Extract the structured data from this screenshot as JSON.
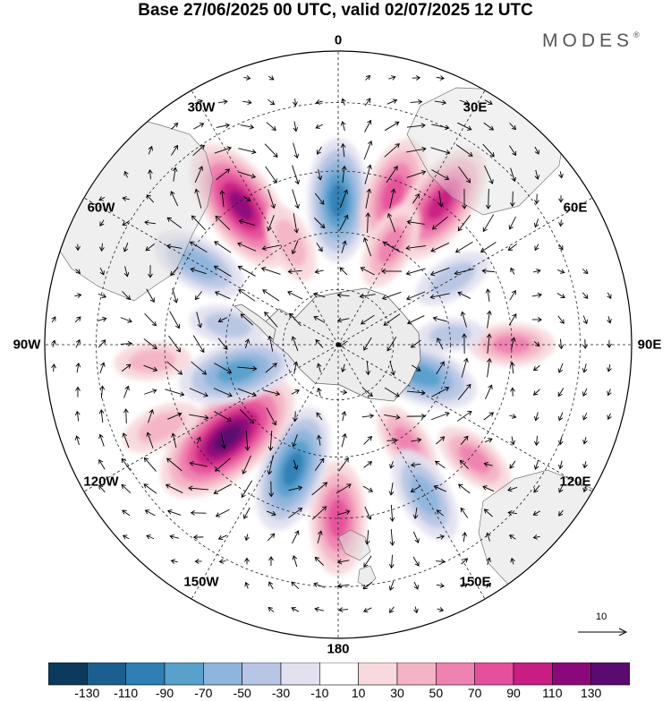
{
  "title": "Base 27/06/2025 00 UTC, valid 02/07/2025 12 UTC",
  "brand": "MODES",
  "brand_mark": "®",
  "longitude_labels": [
    "0",
    "30E",
    "60E",
    "90E",
    "120E",
    "150E",
    "180",
    "150W",
    "120W",
    "90W",
    "60W",
    "30W"
  ],
  "reference_vector": {
    "value": 10,
    "label": "10"
  },
  "colorbar": {
    "colors": [
      "#0c3a5c",
      "#1c5f8f",
      "#2f7fb5",
      "#5aa0cc",
      "#8eb5dc",
      "#b7c6e4",
      "#e3e1f0",
      "#ffffff",
      "#f8d9dd",
      "#f4b4c5",
      "#ee82b0",
      "#e5509a",
      "#c81d83",
      "#8b087a",
      "#5b0a70"
    ],
    "tick_labels": [
      "-130",
      "-110",
      "-90",
      "-70",
      "-50",
      "-30",
      "-10",
      "10",
      "30",
      "50",
      "70",
      "90",
      "110",
      "130"
    ]
  },
  "map_data": {
    "projection": "south-polar-stereographic",
    "pole": "South Pole",
    "anomalies": [
      {
        "lon": 0,
        "lat": -52,
        "value": -80
      },
      {
        "lon": 20,
        "lat": -48,
        "value": 70
      },
      {
        "lon": 36,
        "lat": -45,
        "value": 85
      },
      {
        "lon": 28,
        "lat": -60,
        "value": 45
      },
      {
        "lon": -35,
        "lat": -46,
        "value": 100
      },
      {
        "lon": -25,
        "lat": -60,
        "value": 35
      },
      {
        "lon": -60,
        "lat": -48,
        "value": -55
      },
      {
        "lon": 60,
        "lat": -55,
        "value": -35
      },
      {
        "lon": 90,
        "lat": -45,
        "value": 40
      },
      {
        "lon": 85,
        "lat": -60,
        "value": -20
      },
      {
        "lon": 110,
        "lat": -66,
        "value": -70
      },
      {
        "lon": 130,
        "lat": -44,
        "value": 40
      },
      {
        "lon": 145,
        "lat": -58,
        "value": 40
      },
      {
        "lon": 150,
        "lat": -45,
        "value": -55
      },
      {
        "lon": 180,
        "lat": -45,
        "value": 70
      },
      {
        "lon": -160,
        "lat": -55,
        "value": -85
      },
      {
        "lon": -130,
        "lat": -52,
        "value": 120
      },
      {
        "lon": -105,
        "lat": -62,
        "value": -75
      },
      {
        "lon": -80,
        "lat": -60,
        "value": -30
      },
      {
        "lon": -95,
        "lat": -42,
        "value": 30
      },
      {
        "lon": -115,
        "lat": -40,
        "value": 35
      }
    ]
  }
}
